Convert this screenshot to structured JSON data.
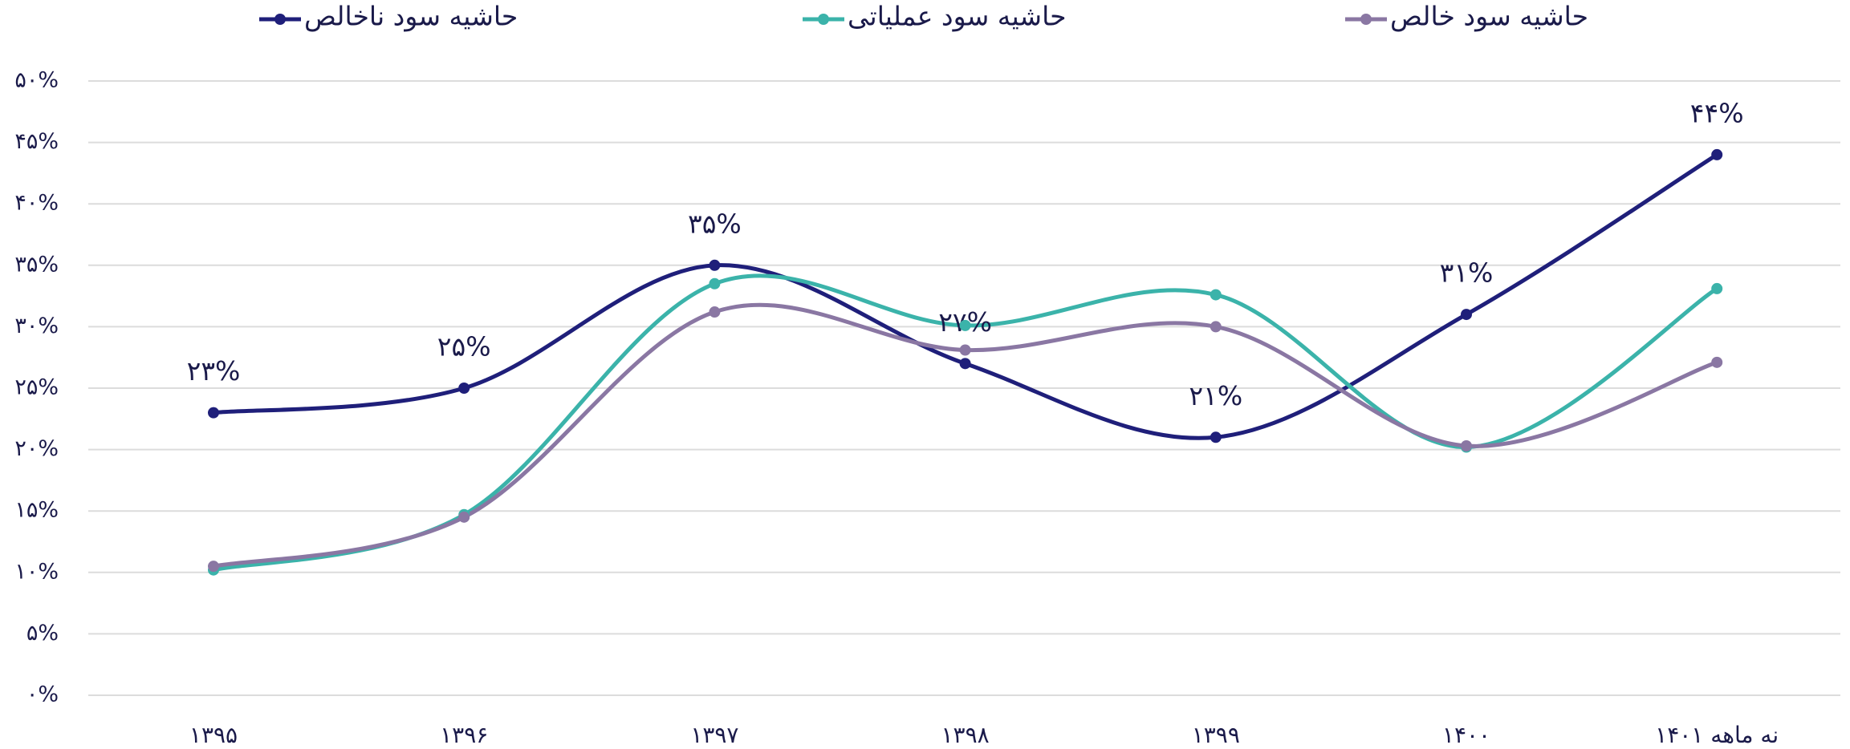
{
  "chart_data": {
    "type": "line",
    "categories": [
      "۱۳۹۵",
      "۱۳۹۶",
      "۱۳۹۷",
      "۱۳۹۸",
      "۱۳۹۹",
      "۱۴۰۰",
      "نه ماهه ۱۴۰۱"
    ],
    "series": [
      {
        "name": "حاشیه سود ناخالص",
        "color": "#1f1f7a",
        "values": [
          23,
          25,
          35,
          27,
          21,
          31,
          44
        ],
        "value_labels": [
          "۲۳%",
          "۲۵%",
          "۳۵%",
          "۲۷%",
          "۲۱%",
          "۳۱%",
          "۴۴%"
        ]
      },
      {
        "name": "حاشیه سود عملیاتی",
        "color": "#3bb3aa",
        "values": [
          10.2,
          14.7,
          33.5,
          30.1,
          32.6,
          20.2,
          33.1
        ]
      },
      {
        "name": "حاشیه سود خالص",
        "color": "#8a77a3",
        "values": [
          10.5,
          14.5,
          31.2,
          28.1,
          30.0,
          20.3,
          27.1
        ]
      }
    ],
    "ylim": [
      0,
      50
    ],
    "yticks": [
      {
        "value": 0,
        "label": "۰%"
      },
      {
        "value": 5,
        "label": "۵%"
      },
      {
        "value": 10,
        "label": "۱۰%"
      },
      {
        "value": 15,
        "label": "۱۵%"
      },
      {
        "value": 20,
        "label": "۲۰%"
      },
      {
        "value": 25,
        "label": "۲۵%"
      },
      {
        "value": 30,
        "label": "۳۰%"
      },
      {
        "value": 35,
        "label": "۳۵%"
      },
      {
        "value": 40,
        "label": "۴۰%"
      },
      {
        "value": 45,
        "label": "۴۵%"
      },
      {
        "value": 50,
        "label": "۵۰%"
      }
    ],
    "grid": true,
    "legend": "top"
  }
}
